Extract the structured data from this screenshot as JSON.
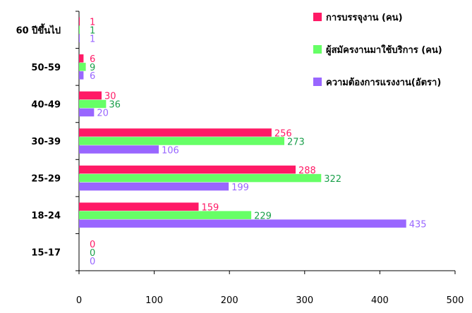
{
  "chart_data": {
    "type": "bar",
    "orientation": "horizontal",
    "categories": [
      "60 ปีขึ้นไป",
      "50-59",
      "40-49",
      "30-39",
      "25-29",
      "18-24",
      "15-17"
    ],
    "series": [
      {
        "name": "การบรรจุงาน (คน)",
        "color": "#ff1a66",
        "values": [
          1,
          6,
          30,
          256,
          288,
          159,
          0
        ]
      },
      {
        "name": "ผู้สมัครงานมาใช้บริการ (คน)",
        "color": "#66ff66",
        "label_color": "#1a9f4a",
        "values": [
          1,
          9,
          36,
          273,
          322,
          229,
          0
        ]
      },
      {
        "name": "ความต้องการแรงงาน(อัตรา)",
        "color": "#9966ff",
        "values": [
          1,
          6,
          20,
          106,
          199,
          435,
          0
        ]
      }
    ],
    "xlim": [
      0,
      500
    ],
    "xticks": [
      0,
      100,
      200,
      300,
      400,
      500
    ],
    "grid": false,
    "legend_position": "top-right",
    "title": "",
    "xlabel": "",
    "ylabel": ""
  }
}
